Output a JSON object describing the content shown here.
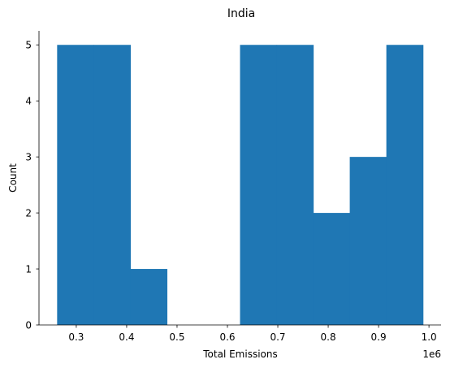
{
  "chart_data": {
    "type": "bar",
    "title": "India",
    "xlabel": "Total Emissions",
    "ylabel": "Count",
    "x_offset_label": "1e6",
    "bin_edges": [
      0.262,
      0.3346,
      0.4072,
      0.4798,
      0.5524,
      0.625,
      0.6976,
      0.7702,
      0.8428,
      0.9154,
      0.988
    ],
    "values": [
      5,
      5,
      1,
      0,
      0,
      5,
      5,
      2,
      3,
      5
    ],
    "xlim": [
      0.226,
      1.024
    ],
    "ylim": [
      0,
      5.25
    ],
    "x_ticks": [
      0.3,
      0.4,
      0.5,
      0.6,
      0.7,
      0.8,
      0.9,
      1.0
    ],
    "x_tick_labels": [
      "0.3",
      "0.4",
      "0.5",
      "0.6",
      "0.7",
      "0.8",
      "0.9",
      "1.0"
    ],
    "y_ticks": [
      0,
      1,
      2,
      3,
      4,
      5
    ],
    "y_tick_labels": [
      "0",
      "1",
      "2",
      "3",
      "4",
      "5"
    ],
    "bar_color": "#1f77b4",
    "grid": false,
    "legend": false
  }
}
